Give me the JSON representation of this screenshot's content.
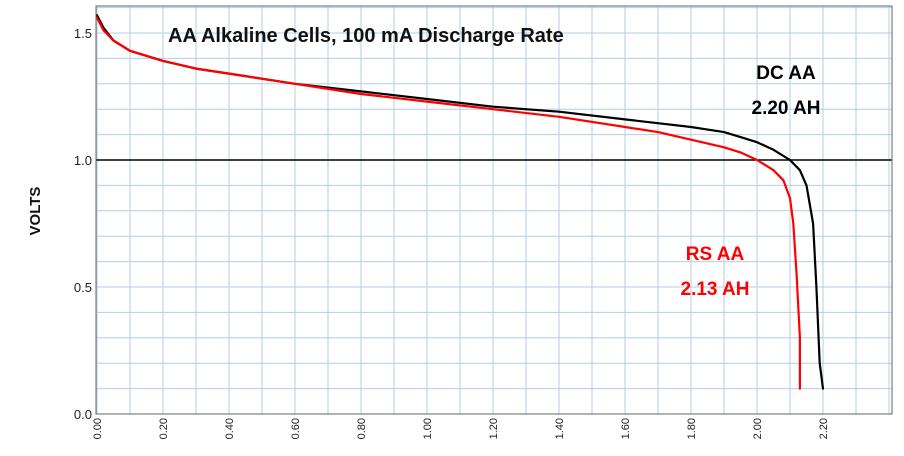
{
  "chart_data": {
    "type": "line",
    "title": "AA Alkaline Cells, 100 mA Discharge Rate",
    "xlabel": "",
    "ylabel": "VOLTS",
    "xlim": [
      0,
      2.42
    ],
    "ylim": [
      0,
      1.6
    ],
    "x_ticks": [
      "0.00",
      "0.20",
      "0.40",
      "0.60",
      "0.80",
      "1.00",
      "1.20",
      "1.40",
      "1.60",
      "1.80",
      "2.00",
      "2.20"
    ],
    "y_ticks": [
      "0.0",
      "0.5",
      "1.0",
      "1.5"
    ],
    "reference_line_y": 1.0,
    "grid": true,
    "colors": {
      "dc": "#000000",
      "rs": "#ff0000",
      "grid": "#b4cde6",
      "refline": "#000000"
    },
    "series": [
      {
        "key": "dc",
        "x": [
          0,
          0.02,
          0.05,
          0.1,
          0.2,
          0.3,
          0.4,
          0.6,
          0.8,
          1.0,
          1.2,
          1.4,
          1.6,
          1.8,
          1.9,
          1.95,
          2.0,
          2.05,
          2.1,
          2.13,
          2.15,
          2.17,
          2.18,
          2.19,
          2.2
        ],
        "y": [
          1.57,
          1.52,
          1.47,
          1.43,
          1.39,
          1.36,
          1.34,
          1.3,
          1.27,
          1.24,
          1.21,
          1.19,
          1.16,
          1.13,
          1.11,
          1.09,
          1.07,
          1.04,
          1.0,
          0.96,
          0.9,
          0.75,
          0.5,
          0.2,
          0.1
        ]
      },
      {
        "key": "rs",
        "x": [
          0,
          0.02,
          0.05,
          0.1,
          0.2,
          0.3,
          0.4,
          0.6,
          0.8,
          1.0,
          1.2,
          1.4,
          1.6,
          1.7,
          1.8,
          1.9,
          1.95,
          2.0,
          2.05,
          2.08,
          2.1,
          2.11,
          2.12,
          2.13,
          2.13
        ],
        "y": [
          1.56,
          1.51,
          1.47,
          1.43,
          1.39,
          1.36,
          1.34,
          1.3,
          1.26,
          1.23,
          1.2,
          1.17,
          1.13,
          1.11,
          1.08,
          1.05,
          1.03,
          1.0,
          0.96,
          0.92,
          0.85,
          0.75,
          0.55,
          0.3,
          0.1
        ]
      }
    ],
    "annotations": {
      "dc_name": "DC AA",
      "dc_capacity": "2.20 AH",
      "rs_name": "RS AA",
      "rs_capacity": "2.13 AH"
    }
  }
}
